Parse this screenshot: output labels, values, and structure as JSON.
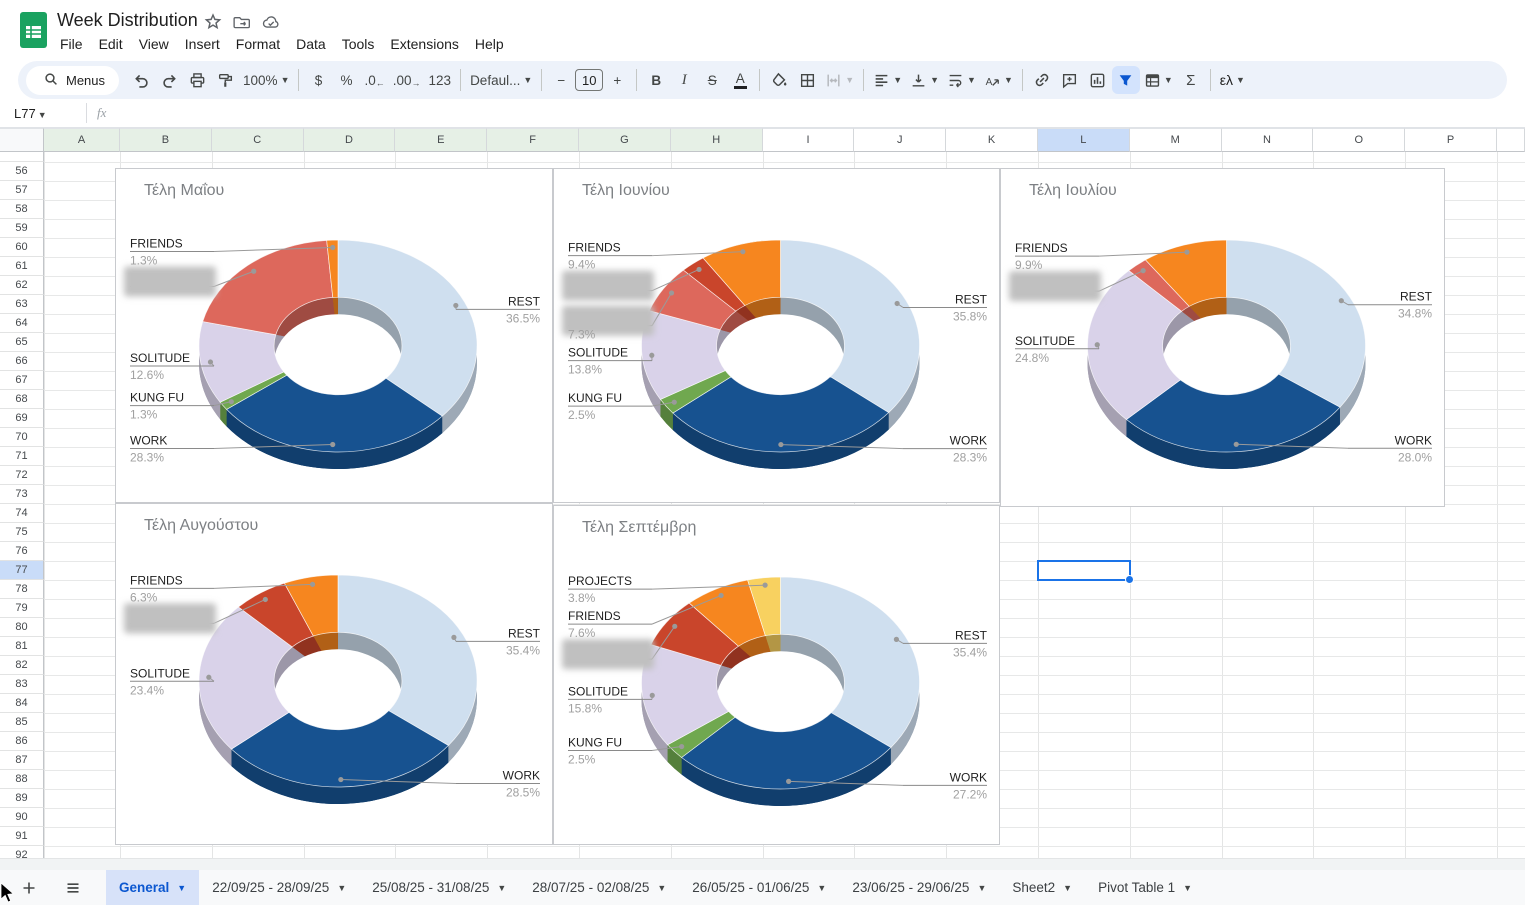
{
  "app": {
    "doc_title": "Week Distribution",
    "menu_items": [
      "File",
      "Edit",
      "View",
      "Insert",
      "Format",
      "Data",
      "Tools",
      "Extensions",
      "Help"
    ]
  },
  "toolbar": {
    "search_label": "Menus",
    "zoom": "100%",
    "currency": "$",
    "percent": "%",
    "dec_decrease": ".0",
    "dec_increase": ".00",
    "fmt_123": "123",
    "font_name": "Defaul...",
    "font_size": "10",
    "minus": "−",
    "plus": "+",
    "bold": "B",
    "italic": "I",
    "strikethrough": "S",
    "text_color": "A",
    "sum": "Σ",
    "input_lang": "ελ"
  },
  "formula_bar": {
    "cell_ref": "L77",
    "fx_label": "fx",
    "content": ""
  },
  "grid": {
    "columns": [
      "A",
      "B",
      "C",
      "D",
      "E",
      "F",
      "G",
      "H",
      "I",
      "J",
      "K",
      "L",
      "M",
      "N",
      "O",
      "P"
    ],
    "green_columns": [
      "A",
      "B",
      "C",
      "D",
      "E",
      "F",
      "G",
      "H"
    ],
    "selected_column": "L",
    "selected_row": 77,
    "first_row": 56,
    "last_row": 92,
    "selected_cell": "L77"
  },
  "chart_data": [
    {
      "type": "pie",
      "donut": true,
      "title": "Τέλη Μαΐου",
      "slices": [
        {
          "label": "REST",
          "value": 36.5,
          "pct_label": "36.5%",
          "color": "#cfdfef",
          "redacted": false
        },
        {
          "label": "WORK",
          "value": 28.3,
          "pct_label": "28.3%",
          "color": "#175290",
          "redacted": false
        },
        {
          "label": "KUNG FU",
          "value": 1.3,
          "pct_label": "1.3%",
          "color": "#70a84f",
          "redacted": false
        },
        {
          "label": "SOLITUDE",
          "value": 12.6,
          "pct_label": "12.6%",
          "color": "#d9d2e9",
          "redacted": false
        },
        {
          "label": "",
          "value": 20.0,
          "pct_label": "",
          "color": "#dd685c",
          "redacted": true
        },
        {
          "label": "FRIENDS",
          "value": 1.3,
          "pct_label": "1.3%",
          "color": "#f6861f",
          "redacted": false
        }
      ]
    },
    {
      "type": "pie",
      "donut": true,
      "title": "Τέλη Ιουνίου",
      "slices": [
        {
          "label": "REST",
          "value": 35.8,
          "pct_label": "35.8%",
          "color": "#cfdfef",
          "redacted": false
        },
        {
          "label": "WORK",
          "value": 28.3,
          "pct_label": "28.3%",
          "color": "#175290",
          "redacted": false
        },
        {
          "label": "KUNG FU",
          "value": 2.5,
          "pct_label": "2.5%",
          "color": "#70a84f",
          "redacted": false
        },
        {
          "label": "SOLITUDE",
          "value": 13.8,
          "pct_label": "13.8%",
          "color": "#d9d2e9",
          "redacted": false
        },
        {
          "label": "",
          "value": 7.3,
          "pct_label": "7.3%",
          "color": "#dd685c",
          "redacted": true
        },
        {
          "label": "",
          "value": 2.9,
          "pct_label": "",
          "color": "#c9452b",
          "redacted": true
        },
        {
          "label": "FRIENDS",
          "value": 9.4,
          "pct_label": "9.4%",
          "color": "#f6861f",
          "redacted": false
        }
      ]
    },
    {
      "type": "pie",
      "donut": true,
      "title": "Τέλη Ιουλίου",
      "slices": [
        {
          "label": "REST",
          "value": 34.8,
          "pct_label": "34.8%",
          "color": "#cfdfef",
          "redacted": false
        },
        {
          "label": "WORK",
          "value": 28.0,
          "pct_label": "28.0%",
          "color": "#175290",
          "redacted": false
        },
        {
          "label": "SOLITUDE",
          "value": 24.8,
          "pct_label": "24.8%",
          "color": "#d9d2e9",
          "redacted": false
        },
        {
          "label": "",
          "value": 2.5,
          "pct_label": "",
          "color": "#dd685c",
          "redacted": true
        },
        {
          "label": "FRIENDS",
          "value": 9.9,
          "pct_label": "9.9%",
          "color": "#f6861f",
          "redacted": false
        }
      ]
    },
    {
      "type": "pie",
      "donut": true,
      "title": "Τέλη Αυγούστου",
      "slices": [
        {
          "label": "REST",
          "value": 35.4,
          "pct_label": "35.4%",
          "color": "#cfdfef",
          "redacted": false
        },
        {
          "label": "WORK",
          "value": 28.5,
          "pct_label": "28.5%",
          "color": "#175290",
          "redacted": false
        },
        {
          "label": "SOLITUDE",
          "value": 23.4,
          "pct_label": "23.4%",
          "color": "#d9d2e9",
          "redacted": false
        },
        {
          "label": "",
          "value": 6.4,
          "pct_label": "",
          "color": "#c9452b",
          "redacted": true
        },
        {
          "label": "FRIENDS",
          "value": 6.3,
          "pct_label": "6.3%",
          "color": "#f6861f",
          "redacted": false
        }
      ]
    },
    {
      "type": "pie",
      "donut": true,
      "title": "Τέλη Σεπτέμβρη",
      "slices": [
        {
          "label": "REST",
          "value": 35.4,
          "pct_label": "35.4%",
          "color": "#cfdfef",
          "redacted": false
        },
        {
          "label": "WORK",
          "value": 27.2,
          "pct_label": "27.2%",
          "color": "#175290",
          "redacted": false
        },
        {
          "label": "KUNG FU",
          "value": 2.5,
          "pct_label": "2.5%",
          "color": "#70a84f",
          "redacted": false
        },
        {
          "label": "SOLITUDE",
          "value": 15.8,
          "pct_label": "15.8%",
          "color": "#d9d2e9",
          "redacted": false
        },
        {
          "label": "",
          "value": 7.7,
          "pct_label": "",
          "color": "#c9452b",
          "redacted": true
        },
        {
          "label": "FRIENDS",
          "value": 7.6,
          "pct_label": "7.6%",
          "color": "#f6861f",
          "redacted": false
        },
        {
          "label": "PROJECTS",
          "value": 3.8,
          "pct_label": "3.8%",
          "color": "#f8d160",
          "redacted": false
        }
      ]
    }
  ],
  "sheet_tabs": {
    "tabs": [
      {
        "label": "General",
        "active": true
      },
      {
        "label": "22/09/25 - 28/09/25",
        "active": false
      },
      {
        "label": "25/08/25 - 31/08/25",
        "active": false
      },
      {
        "label": "28/07/25 - 02/08/25",
        "active": false
      },
      {
        "label": "26/05/25 - 01/06/25",
        "active": false
      },
      {
        "label": "23/06/25 - 29/06/25",
        "active": false
      },
      {
        "label": "Sheet2",
        "active": false
      },
      {
        "label": "Pivot Table 1",
        "active": false
      }
    ]
  },
  "colors": {
    "accent": "#1a73e8",
    "active_tab_bg": "#d7e2f9",
    "toolbar_bg": "#edf2fa",
    "filter_active_bg": "#d3e3fd",
    "header_green": "#e6f0e6",
    "selected_header_bg": "#c9dcf8",
    "logo_green": "#1aa260"
  }
}
